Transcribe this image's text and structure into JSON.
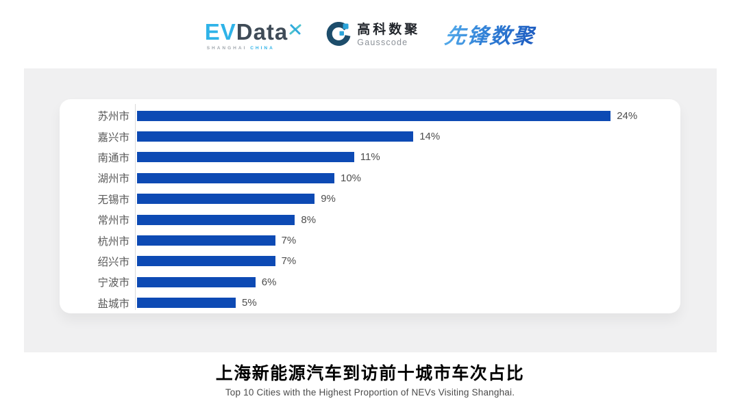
{
  "header": {
    "evdata": {
      "ev": "EV",
      "data": "Data",
      "sub_left": "SHANGHAI",
      "sub_right": "CHINA"
    },
    "gausscode": {
      "cn": "高科数聚",
      "en": "Gausscode"
    },
    "xianfeng": {
      "text": "先锋数聚"
    }
  },
  "chart_data": {
    "type": "bar",
    "orientation": "horizontal",
    "categories": [
      "苏州市",
      "嘉兴市",
      "南通市",
      "湖州市",
      "无锡市",
      "常州市",
      "杭州市",
      "绍兴市",
      "宁波市",
      "盐城市"
    ],
    "values": [
      24,
      14,
      11,
      10,
      9,
      8,
      7,
      7,
      6,
      5
    ],
    "value_labels": [
      "24%",
      "14%",
      "11%",
      "10%",
      "9%",
      "8%",
      "7%",
      "7%",
      "6%",
      "5%"
    ],
    "unit": "%",
    "xlim": [
      0,
      25
    ],
    "grid": false,
    "legend": "none",
    "bar_color": "#0d4ab4",
    "title": "上海新能源汽车到访前十城市车次占比",
    "subtitle": "Top 10 Cities with the Highest Proportion of  NEVs Visiting Shanghai."
  },
  "footer": {
    "title": "上海新能源汽车到访前十城市车次占比",
    "subtitle": "Top 10 Cities with the Highest Proportion of  NEVs Visiting Shanghai."
  },
  "colors": {
    "bar": "#0d4ab4",
    "panel_bg": "#f0f0f1",
    "card_bg": "#ffffff",
    "axis_line": "#d9d9d9",
    "category_label": "#5a5a5a",
    "value_label": "#4d4d4d",
    "evdata_blue": "#2fb3e8",
    "evdata_dark": "#3f4b57",
    "gausscode_dark": "#1d4d6b",
    "gausscode_blue": "#2ba4da",
    "xianfeng_blue": "#2b7cd0"
  }
}
